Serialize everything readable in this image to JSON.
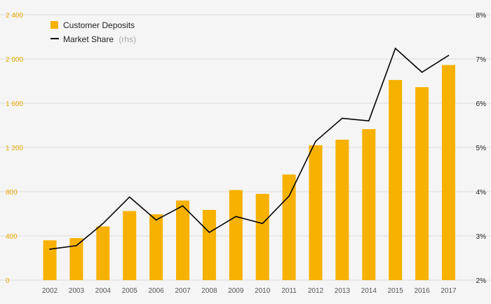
{
  "chart_data": {
    "type": "bar",
    "categories": [
      "2002",
      "2003",
      "2004",
      "2005",
      "2006",
      "2007",
      "2008",
      "2009",
      "2010",
      "2011",
      "2012",
      "2013",
      "2014",
      "2015",
      "2016",
      "2017"
    ],
    "series": [
      {
        "name": "Customer Deposits",
        "type": "bar",
        "axis": "left",
        "color": "#f7b100",
        "values": [
          360,
          380,
          485,
          625,
          595,
          720,
          635,
          815,
          780,
          955,
          1220,
          1270,
          1365,
          1810,
          1745,
          1945
        ]
      },
      {
        "name": "Market Share",
        "name_suffix": "(rhs)",
        "type": "line",
        "axis": "right",
        "color": "#000000",
        "values": [
          2.7,
          2.78,
          3.28,
          3.88,
          3.36,
          3.68,
          3.08,
          3.44,
          3.28,
          3.9,
          5.14,
          5.66,
          5.6,
          7.24,
          6.7,
          7.08
        ]
      }
    ],
    "y_left": {
      "ylim": [
        0,
        2400
      ],
      "ticks": [
        0,
        400,
        800,
        1200,
        1600,
        2000,
        2400
      ],
      "tick_labels": [
        "0",
        "400",
        "800",
        "1 200",
        "1 600",
        "2 000",
        "2 400"
      ]
    },
    "y_right": {
      "ylim": [
        2,
        8
      ],
      "ticks": [
        2,
        3,
        4,
        5,
        6,
        7,
        8
      ],
      "tick_labels": [
        "2%",
        "3%",
        "4%",
        "5%",
        "6%",
        "7%",
        "8%"
      ]
    },
    "grid": true,
    "legend": "top-left"
  },
  "legend": {
    "deposits_label": "Customer Deposits",
    "share_label": "Market Share",
    "share_suffix": "(rhs)"
  }
}
